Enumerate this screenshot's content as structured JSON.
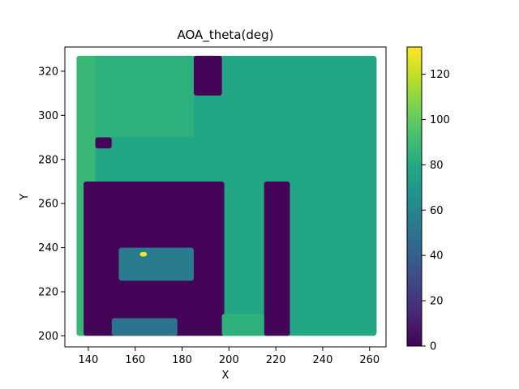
{
  "chart_data": {
    "type": "heatmap",
    "title": "AOA_theta(deg)",
    "xlabel": "X",
    "ylabel": "Y",
    "xlim": [
      130,
      267
    ],
    "ylim": [
      195,
      331
    ],
    "x_ticks": [
      140,
      160,
      180,
      200,
      220,
      240,
      260
    ],
    "y_ticks": [
      200,
      220,
      240,
      260,
      280,
      300,
      320
    ],
    "colorbar": {
      "colormap": "viridis",
      "range": [
        0,
        132
      ],
      "ticks": [
        0,
        20,
        40,
        60,
        80,
        100,
        120
      ]
    },
    "grid": false,
    "background_value": 78,
    "regions": [
      {
        "label": "left-margin",
        "x": [
          135,
          143
        ],
        "y": [
          200,
          327
        ],
        "value": 88
      },
      {
        "label": "upper-left-area",
        "x": [
          143,
          185
        ],
        "y": [
          290,
          327
        ],
        "value": 84
      },
      {
        "label": "top-dark-block",
        "x": [
          185,
          197
        ],
        "y": [
          309,
          327
        ],
        "value": 1
      },
      {
        "label": "small-dark-patch",
        "x": [
          143,
          150
        ],
        "y": [
          285,
          290
        ],
        "value": 1
      },
      {
        "label": "central-dark-block",
        "x": [
          138,
          198
        ],
        "y": [
          200,
          270
        ],
        "value": 1
      },
      {
        "label": "inner-cavity",
        "x": [
          153,
          185
        ],
        "y": [
          225,
          240
        ],
        "value": 55
      },
      {
        "label": "bottom-cavity",
        "x": [
          150,
          178
        ],
        "y": [
          200,
          208
        ],
        "value": 50
      },
      {
        "label": "bright-spot",
        "x": [
          162,
          165
        ],
        "y": [
          236,
          238
        ],
        "value": 130
      },
      {
        "label": "vertical-dark-bar",
        "x": [
          215,
          226
        ],
        "y": [
          200,
          270
        ],
        "value": 1
      },
      {
        "label": "bottom-strip",
        "x": [
          197,
          215
        ],
        "y": [
          200,
          210
        ],
        "value": 84
      }
    ]
  }
}
